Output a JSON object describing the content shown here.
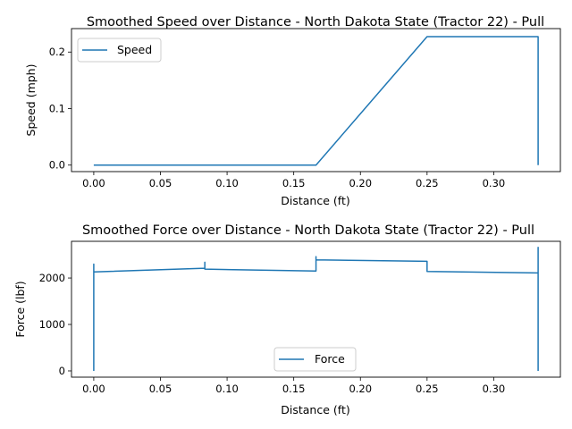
{
  "chart_data": [
    {
      "type": "line",
      "title": "Smoothed Speed over Distance - North Dakota State (Tractor 22) - Pull",
      "xlabel": "Distance (ft)",
      "ylabel": "Speed (mph)",
      "xlim": [
        -0.0167,
        0.35
      ],
      "ylim": [
        -0.0115,
        0.2415
      ],
      "x_ticks": [
        0.0,
        0.05,
        0.1,
        0.15,
        0.2,
        0.25,
        0.3
      ],
      "x_tick_labels": [
        "0.00",
        "0.05",
        "0.10",
        "0.15",
        "0.20",
        "0.25",
        "0.30"
      ],
      "y_ticks": [
        0.0,
        0.1,
        0.2
      ],
      "y_tick_labels": [
        "0.0",
        "0.1",
        "0.2"
      ],
      "legend_position": "upper-left",
      "grid": false,
      "series": [
        {
          "name": "Speed",
          "color": "#1f77b4",
          "x": [
            0.0,
            0.1667,
            0.25,
            0.3333,
            0.3333
          ],
          "y": [
            0.0,
            0.0,
            0.2273,
            0.2273,
            0.0
          ]
        }
      ]
    },
    {
      "type": "line",
      "title": "Smoothed Force over Distance - North Dakota State (Tractor 22) - Pull",
      "xlabel": "Distance (ft)",
      "ylabel": "Force (lbf)",
      "xlim": [
        -0.0167,
        0.35
      ],
      "ylim": [
        -135,
        2790
      ],
      "x_ticks": [
        0.0,
        0.05,
        0.1,
        0.15,
        0.2,
        0.25,
        0.3
      ],
      "x_tick_labels": [
        "0.00",
        "0.05",
        "0.10",
        "0.15",
        "0.20",
        "0.25",
        "0.30"
      ],
      "y_ticks": [
        0,
        1000,
        2000
      ],
      "y_tick_labels": [
        "0",
        "1000",
        "2000"
      ],
      "legend_position": "lower-center",
      "grid": false,
      "series": [
        {
          "name": "Force",
          "color": "#1f77b4",
          "x": [
            0.0,
            0.0,
            0.0,
            0.0,
            0.0833,
            0.0833,
            0.0833,
            0.0833,
            0.1667,
            0.1667,
            0.1667,
            0.1667,
            0.25,
            0.25,
            0.25,
            0.3333,
            0.3333,
            0.3333
          ],
          "y": [
            0,
            2300,
            2130,
            2130,
            2210,
            2340,
            2190,
            2190,
            2150,
            2150,
            2460,
            2390,
            2360,
            2360,
            2140,
            2110,
            2660,
            0
          ]
        }
      ]
    }
  ]
}
